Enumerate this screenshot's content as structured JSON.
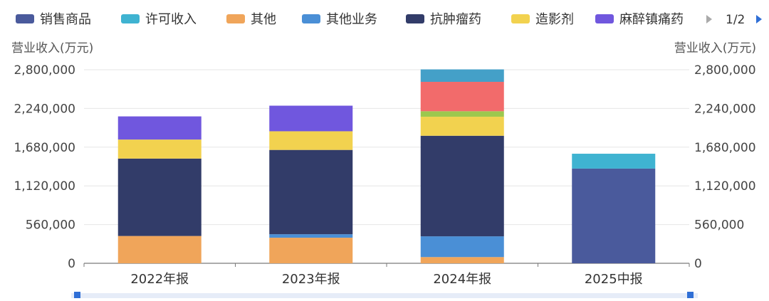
{
  "legend": {
    "items": [
      {
        "name": "销售商品",
        "color": "#4a5a9c"
      },
      {
        "name": "许可收入",
        "color": "#3fb3d1"
      },
      {
        "name": "其他",
        "color": "#f0a55a"
      },
      {
        "name": "其他业务",
        "color": "#4a8fd6"
      },
      {
        "name": "抗肿瘤药",
        "color": "#323c69"
      },
      {
        "name": "造影剂",
        "color": "#f2d24f"
      },
      {
        "name": "麻醉镇痛药",
        "color": "#7057de"
      }
    ],
    "page_indicator": "1/2"
  },
  "chart_data": {
    "type": "bar",
    "stacked": true,
    "categories": [
      "2022年报",
      "2023年报",
      "2024年报",
      "2025中报"
    ],
    "ylabel_left": "营业收入(万元)",
    "ylabel_right": "营业收入(万元)",
    "ylim": [
      0,
      2800000
    ],
    "yticks": [
      "0",
      "560,000",
      "1,120,000",
      "1,680,000",
      "2,240,000",
      "2,800,000"
    ],
    "ytick_values": [
      0,
      560000,
      1120000,
      1680000,
      2240000,
      2800000
    ],
    "grid": true,
    "legend_position": "top",
    "series": [
      {
        "name": "销售商品",
        "color": "#4a5a9c",
        "values": [
          0,
          0,
          0,
          1370000
        ]
      },
      {
        "name": "许可收入",
        "color": "#3fb3d1",
        "values": [
          0,
          0,
          0,
          215000
        ]
      },
      {
        "name": "其他",
        "color": "#f0a55a",
        "values": [
          395000,
          370000,
          90000,
          0
        ]
      },
      {
        "name": "其他业务",
        "color": "#4a8fd6",
        "values": [
          0,
          50000,
          300000,
          0
        ]
      },
      {
        "name": "抗肿瘤药",
        "color": "#323c69",
        "values": [
          1120000,
          1220000,
          1455000,
          0
        ]
      },
      {
        "name": "造影剂",
        "color": "#f2d24f",
        "values": [
          275000,
          270000,
          275000,
          0
        ]
      },
      {
        "name": "麻醉镇痛药",
        "color": "#7057de",
        "values": [
          335000,
          370000,
          0,
          0
        ]
      },
      {
        "color": "#9cc84e",
        "values": [
          0,
          0,
          80000,
          0
        ]
      },
      {
        "color": "#f26b6b",
        "values": [
          0,
          0,
          425000,
          0
        ]
      },
      {
        "color": "#44a0c8",
        "values": [
          0,
          0,
          180000,
          0
        ]
      }
    ]
  }
}
